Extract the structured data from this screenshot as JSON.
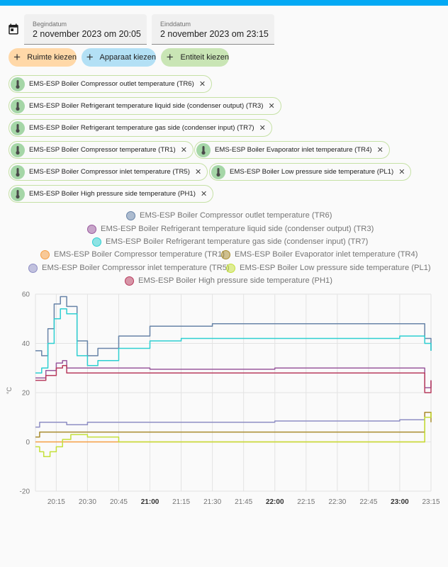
{
  "header": {
    "accent_color": "#03a9f4"
  },
  "date_range": {
    "icon": "calendar-icon",
    "start": {
      "label": "Begindatum",
      "value": "2 november 2023 om 20:05"
    },
    "end": {
      "label": "Einddatum",
      "value": "2 november 2023 om 23:15"
    }
  },
  "pickers": [
    {
      "label": "Ruimte kiezen",
      "color": "#ffd8a8"
    },
    {
      "label": "Apparaat kiezen",
      "color": "#b3e0f5"
    },
    {
      "label": "Entiteit kiezen",
      "color": "#c9e5b5"
    }
  ],
  "entities": [
    "EMS-ESP Boiler Compressor outlet temperature (TR6)",
    "EMS-ESP Boiler Refrigerant temperature liquid side (condenser output) (TR3)",
    "EMS-ESP Boiler Refrigerant temperature gas side (condenser input) (TR7)",
    "EMS-ESP Boiler Compressor temperature (TR1)",
    "EMS-ESP Boiler Evaporator inlet temperature (TR4)",
    "EMS-ESP Boiler Compressor inlet temperature (TR5)",
    "EMS-ESP Boiler Low pressure side temperature (PL1)",
    "EMS-ESP Boiler High pressure side temperature (PH1)"
  ],
  "chart_data": {
    "type": "line",
    "ylabel": "°C",
    "ylim": [
      -20,
      60
    ],
    "yticks": [
      "-20",
      "0",
      "20",
      "40",
      "60"
    ],
    "xlim": [
      "20:05",
      "23:15"
    ],
    "xticks": [
      "20:15",
      "20:30",
      "20:45",
      "21:00",
      "21:15",
      "21:30",
      "21:45",
      "22:00",
      "22:15",
      "22:30",
      "22:45",
      "23:00",
      "23:15"
    ],
    "bold_xticks": [
      "21:00",
      "22:00",
      "23:00"
    ],
    "grid": true,
    "legend_position": "top",
    "series": [
      {
        "name": "EMS-ESP Boiler Compressor outlet temperature (TR6)",
        "color": "#6884a8",
        "x": [
          "20:05",
          "20:08",
          "20:11",
          "20:14",
          "20:17",
          "20:20",
          "20:25",
          "20:30",
          "20:35",
          "20:45",
          "21:00",
          "21:15",
          "21:30",
          "22:00",
          "22:30",
          "23:00",
          "23:10",
          "23:12",
          "23:15"
        ],
        "y": [
          37,
          35,
          46,
          56,
          59,
          55,
          41,
          35,
          38,
          43,
          47,
          47,
          48,
          48,
          48,
          48,
          48,
          42,
          37
        ]
      },
      {
        "name": "EMS-ESP Boiler Refrigerant temperature liquid side (condenser output) (TR3)",
        "color": "#9a5a9e",
        "x": [
          "20:05",
          "20:10",
          "20:15",
          "20:18",
          "20:20",
          "20:30",
          "21:00",
          "22:00",
          "23:00",
          "23:10",
          "23:11",
          "23:12",
          "23:15"
        ],
        "y": [
          26,
          29,
          32,
          33,
          30,
          30,
          29.5,
          30,
          30,
          30,
          30,
          22,
          25
        ]
      },
      {
        "name": "EMS-ESP Boiler Refrigerant temperature gas side (condenser input) (TR7)",
        "color": "#2ecfd1",
        "x": [
          "20:05",
          "20:08",
          "20:11",
          "20:14",
          "20:17",
          "20:20",
          "20:25",
          "20:30",
          "20:35",
          "20:45",
          "21:00",
          "21:15",
          "21:30",
          "22:00",
          "22:30",
          "23:00",
          "23:10",
          "23:12",
          "23:15"
        ],
        "y": [
          28,
          30,
          40,
          50,
          54,
          52,
          35,
          31,
          33,
          38,
          41,
          42,
          42,
          42,
          42,
          43,
          43,
          40,
          37
        ]
      },
      {
        "name": "EMS-ESP Boiler Compressor temperature (TR1)",
        "color": "#f59e42",
        "x": [
          "20:05",
          "20:10",
          "20:15",
          "20:20",
          "20:25",
          "21:00",
          "22:00",
          "23:00",
          "23:11",
          "23:12",
          "23:15"
        ],
        "y": [
          0,
          0,
          0,
          0,
          0,
          0,
          0,
          0,
          0,
          12,
          10
        ]
      },
      {
        "name": "EMS-ESP Boiler Evaporator inlet temperature (TR4)",
        "color": "#a88c2e",
        "x": [
          "20:05",
          "20:07",
          "20:10",
          "20:15",
          "20:20",
          "20:30",
          "21:00",
          "22:00",
          "23:00",
          "23:11",
          "23:12",
          "23:15"
        ],
        "y": [
          2,
          4,
          4,
          4,
          4,
          4,
          4,
          4,
          4,
          4,
          12,
          8
        ]
      },
      {
        "name": "EMS-ESP Boiler Compressor inlet temperature (TR5)",
        "color": "#8e8ec4",
        "x": [
          "20:05",
          "20:07",
          "20:10",
          "20:15",
          "20:20",
          "20:30",
          "21:00",
          "22:00",
          "23:00",
          "23:11",
          "23:12",
          "23:15"
        ],
        "y": [
          6,
          8,
          8,
          8,
          7,
          8,
          8,
          8.5,
          9,
          9,
          10,
          10
        ]
      },
      {
        "name": "EMS-ESP Boiler Low pressure side temperature (PL1)",
        "color": "#c4e03a",
        "x": [
          "20:05",
          "20:07",
          "20:09",
          "20:12",
          "20:15",
          "20:18",
          "20:22",
          "20:30",
          "20:45",
          "21:00",
          "22:00",
          "23:00",
          "23:11",
          "23:12",
          "23:15"
        ],
        "y": [
          -2,
          -4,
          -6,
          -4,
          -2,
          1,
          3,
          2,
          0,
          0,
          0,
          0,
          0,
          10,
          12
        ]
      },
      {
        "name": "EMS-ESP Boiler High pressure side temperature (PH1)",
        "color": "#b83c5e",
        "x": [
          "20:05",
          "20:10",
          "20:15",
          "20:18",
          "20:20",
          "20:30",
          "21:00",
          "22:00",
          "23:00",
          "23:10",
          "23:11",
          "23:12",
          "23:15"
        ],
        "y": [
          25,
          27,
          30,
          31,
          28,
          28,
          28,
          28,
          28,
          28,
          28,
          20,
          25
        ]
      }
    ]
  }
}
